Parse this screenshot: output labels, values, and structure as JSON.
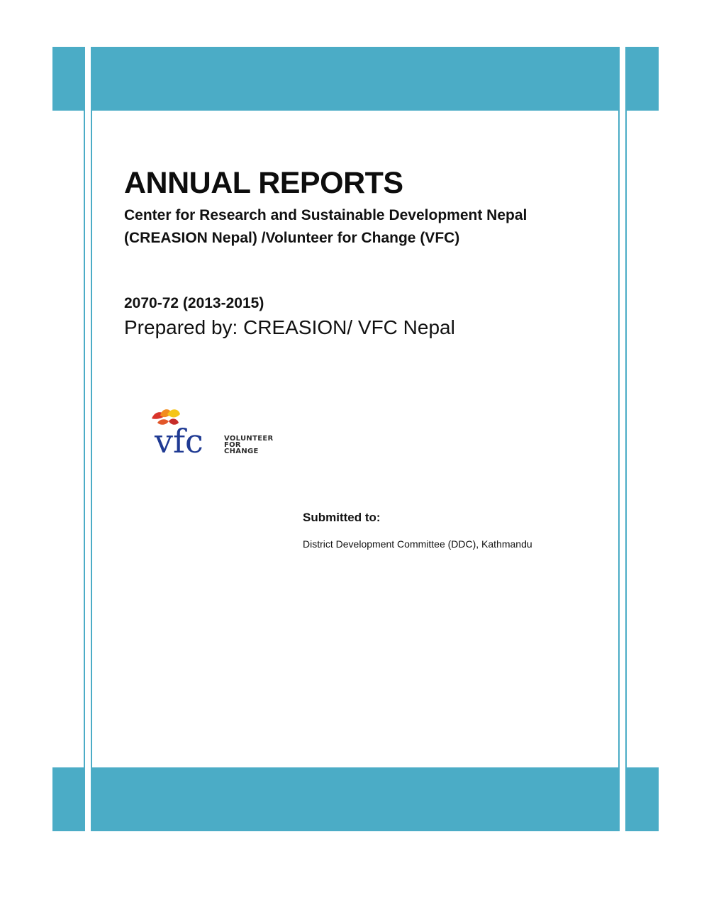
{
  "report": {
    "title": "ANNUAL REPORTS",
    "organization_line1": "Center for Research and Sustainable Development Nepal",
    "organization_line2": "(CREASION Nepal) /Volunteer for Change (VFC)",
    "period": "2070-72 (2013-2015)",
    "prepared_by": "Prepared by: CREASION/ VFC Nepal"
  },
  "logo": {
    "wordmark": "vfc",
    "tagline_line1": "VOLUNTEER",
    "tagline_line2": "FOR",
    "tagline_line3": "CHANGE"
  },
  "submission": {
    "label": "Submitted to:",
    "recipient": "District Development Committee (DDC), Kathmandu"
  },
  "colors": {
    "accent_band": "#4bacc6",
    "logo_blue": "#1f3a93",
    "logo_leaf_red": "#d9342b",
    "logo_leaf_orange": "#f28c1e",
    "logo_leaf_yellow": "#f5c518"
  }
}
